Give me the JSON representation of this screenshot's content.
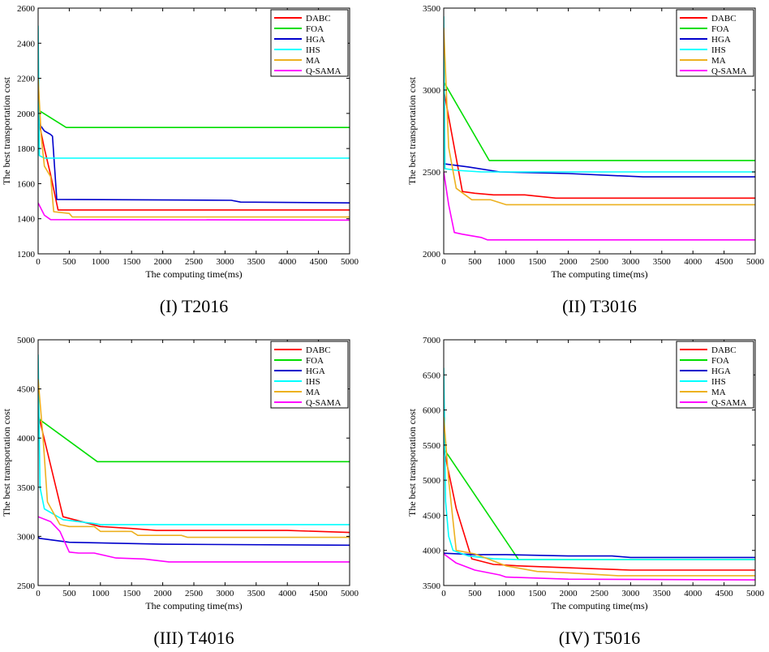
{
  "figure": {
    "colors": {
      "DABC": "#ff0000",
      "FOA": "#00dd00",
      "HGA": "#0000cc",
      "IHS": "#00ffff",
      "MA": "#edb120",
      "Q-SAMA": "#ff00ff"
    }
  },
  "chart_data": [
    {
      "type": "line",
      "caption": "(I) T2016",
      "xlabel": "The computing time(ms)",
      "ylabel": "The best transportation cost",
      "xlim": [
        0,
        5000
      ],
      "ylim": [
        1200,
        2600
      ],
      "xticks": [
        0,
        500,
        1000,
        1500,
        2000,
        2500,
        3000,
        3500,
        4000,
        4500,
        5000
      ],
      "yticks": [
        1200,
        1400,
        1600,
        1800,
        2000,
        2200,
        2400,
        2600
      ],
      "legend_position": "top-right",
      "series": [
        {
          "name": "DABC",
          "points": [
            [
              0,
              2050
            ],
            [
              20,
              1940
            ],
            [
              100,
              1800
            ],
            [
              200,
              1650
            ],
            [
              320,
              1450
            ],
            [
              5000,
              1450
            ]
          ]
        },
        {
          "name": "FOA",
          "points": [
            [
              0,
              2020
            ],
            [
              450,
              1920
            ],
            [
              5000,
              1920
            ]
          ]
        },
        {
          "name": "HGA",
          "points": [
            [
              0,
              2050
            ],
            [
              20,
              1940
            ],
            [
              100,
              1900
            ],
            [
              200,
              1880
            ],
            [
              230,
              1870
            ],
            [
              300,
              1510
            ],
            [
              3100,
              1505
            ],
            [
              3250,
              1495
            ],
            [
              5000,
              1490
            ]
          ]
        },
        {
          "name": "IHS",
          "points": [
            [
              0,
              2500
            ],
            [
              20,
              1760
            ],
            [
              100,
              1745
            ],
            [
              5000,
              1745
            ]
          ]
        },
        {
          "name": "MA",
          "points": [
            [
              0,
              2200
            ],
            [
              50,
              1870
            ],
            [
              100,
              1700
            ],
            [
              200,
              1640
            ],
            [
              250,
              1440
            ],
            [
              500,
              1430
            ],
            [
              550,
              1410
            ],
            [
              5000,
              1410
            ]
          ]
        },
        {
          "name": "Q-SAMA",
          "points": [
            [
              0,
              1490
            ],
            [
              100,
              1420
            ],
            [
              200,
              1395
            ],
            [
              5000,
              1392
            ]
          ]
        }
      ]
    },
    {
      "type": "line",
      "caption": "(II) T3016",
      "xlabel": "The computing time(ms)",
      "ylabel": "The best transportation cost",
      "xlim": [
        0,
        5000
      ],
      "ylim": [
        2000,
        3500
      ],
      "xticks": [
        0,
        500,
        1000,
        1500,
        2000,
        2500,
        3000,
        3500,
        4000,
        4500,
        5000
      ],
      "yticks": [
        2000,
        2500,
        3000,
        3500
      ],
      "legend_position": "top-right",
      "series": [
        {
          "name": "DABC",
          "points": [
            [
              0,
              3000
            ],
            [
              300,
              2380
            ],
            [
              500,
              2370
            ],
            [
              800,
              2360
            ],
            [
              1300,
              2360
            ],
            [
              1800,
              2340
            ],
            [
              5000,
              2340
            ]
          ]
        },
        {
          "name": "FOA",
          "points": [
            [
              0,
              3050
            ],
            [
              730,
              2570
            ],
            [
              5000,
              2570
            ]
          ]
        },
        {
          "name": "HGA",
          "points": [
            [
              0,
              2550
            ],
            [
              400,
              2530
            ],
            [
              900,
              2500
            ],
            [
              2000,
              2490
            ],
            [
              3200,
              2470
            ],
            [
              5000,
              2470
            ]
          ]
        },
        {
          "name": "IHS",
          "points": [
            [
              0,
              3450
            ],
            [
              20,
              2520
            ],
            [
              200,
              2510
            ],
            [
              600,
              2500
            ],
            [
              5000,
              2500
            ]
          ]
        },
        {
          "name": "MA",
          "points": [
            [
              0,
              3380
            ],
            [
              80,
              2650
            ],
            [
              200,
              2400
            ],
            [
              450,
              2330
            ],
            [
              750,
              2330
            ],
            [
              1000,
              2300
            ],
            [
              5000,
              2300
            ]
          ]
        },
        {
          "name": "Q-SAMA",
          "points": [
            [
              0,
              2500
            ],
            [
              80,
              2300
            ],
            [
              170,
              2130
            ],
            [
              300,
              2120
            ],
            [
              600,
              2100
            ],
            [
              700,
              2085
            ],
            [
              5000,
              2085
            ]
          ]
        }
      ]
    },
    {
      "type": "line",
      "caption": "(III) T4016",
      "xlabel": "The computing time(ms)",
      "ylabel": "The best transportation cost",
      "xlim": [
        0,
        5000
      ],
      "ylim": [
        2500,
        5000
      ],
      "xticks": [
        0,
        500,
        1000,
        1500,
        2000,
        2500,
        3000,
        3500,
        4000,
        4500,
        5000
      ],
      "yticks": [
        2500,
        3000,
        3500,
        4000,
        4500,
        5000
      ],
      "legend_position": "top-right",
      "series": [
        {
          "name": "DABC",
          "points": [
            [
              0,
              4250
            ],
            [
              400,
              3200
            ],
            [
              1000,
              3100
            ],
            [
              1500,
              3080
            ],
            [
              1900,
              3060
            ],
            [
              4000,
              3060
            ],
            [
              5000,
              3040
            ]
          ]
        },
        {
          "name": "FOA",
          "points": [
            [
              0,
              4200
            ],
            [
              950,
              3760
            ],
            [
              5000,
              3760
            ]
          ]
        },
        {
          "name": "HGA",
          "points": [
            [
              0,
              3000
            ],
            [
              20,
              2980
            ],
            [
              500,
              2940
            ],
            [
              2000,
              2920
            ],
            [
              5000,
              2910
            ]
          ]
        },
        {
          "name": "IHS",
          "points": [
            [
              0,
              4850
            ],
            [
              30,
              3500
            ],
            [
              100,
              3280
            ],
            [
              400,
              3170
            ],
            [
              900,
              3130
            ],
            [
              1000,
              3120
            ],
            [
              5000,
              3120
            ]
          ]
        },
        {
          "name": "MA",
          "points": [
            [
              0,
              4600
            ],
            [
              80,
              4000
            ],
            [
              150,
              3350
            ],
            [
              350,
              3120
            ],
            [
              500,
              3100
            ],
            [
              900,
              3100
            ],
            [
              1000,
              3050
            ],
            [
              1500,
              3050
            ],
            [
              1600,
              3010
            ],
            [
              2300,
              3010
            ],
            [
              2400,
              2990
            ],
            [
              4000,
              2990
            ],
            [
              5000,
              2990
            ]
          ]
        },
        {
          "name": "Q-SAMA",
          "points": [
            [
              0,
              3200
            ],
            [
              200,
              3150
            ],
            [
              350,
              3050
            ],
            [
              500,
              2840
            ],
            [
              650,
              2830
            ],
            [
              900,
              2830
            ],
            [
              1250,
              2780
            ],
            [
              1700,
              2770
            ],
            [
              2100,
              2740
            ],
            [
              5000,
              2740
            ]
          ]
        }
      ]
    },
    {
      "type": "line",
      "caption": "(IV) T5016",
      "xlabel": "The computing time(ms)",
      "ylabel": "The best transportation cost",
      "xlim": [
        0,
        5000
      ],
      "ylim": [
        3500,
        7000
      ],
      "xticks": [
        0,
        500,
        1000,
        1500,
        2000,
        2500,
        3000,
        3500,
        4000,
        4500,
        5000
      ],
      "yticks": [
        3500,
        4000,
        4500,
        5000,
        5500,
        6000,
        6500,
        7000
      ],
      "legend_position": "top-right",
      "series": [
        {
          "name": "DABC",
          "points": [
            [
              0,
              5450
            ],
            [
              200,
              4600
            ],
            [
              450,
              3880
            ],
            [
              800,
              3800
            ],
            [
              1200,
              3780
            ],
            [
              3000,
              3720
            ],
            [
              5000,
              3720
            ]
          ]
        },
        {
          "name": "FOA",
          "points": [
            [
              0,
              5450
            ],
            [
              1200,
              3870
            ],
            [
              5000,
              3870
            ]
          ]
        },
        {
          "name": "HGA",
          "points": [
            [
              0,
              3960
            ],
            [
              500,
              3940
            ],
            [
              1000,
              3940
            ],
            [
              2000,
              3920
            ],
            [
              2700,
              3920
            ],
            [
              3000,
              3900
            ],
            [
              5000,
              3900
            ]
          ]
        },
        {
          "name": "IHS",
          "points": [
            [
              0,
              6600
            ],
            [
              30,
              4700
            ],
            [
              80,
              4200
            ],
            [
              150,
              4000
            ],
            [
              400,
              3920
            ],
            [
              800,
              3880
            ],
            [
              1200,
              3870
            ],
            [
              5000,
              3870
            ]
          ]
        },
        {
          "name": "MA",
          "points": [
            [
              0,
              5900
            ],
            [
              80,
              5000
            ],
            [
              200,
              4000
            ],
            [
              500,
              3950
            ],
            [
              1000,
              3780
            ],
            [
              1500,
              3700
            ],
            [
              2000,
              3680
            ],
            [
              2800,
              3640
            ],
            [
              5000,
              3640
            ]
          ]
        },
        {
          "name": "Q-SAMA",
          "points": [
            [
              0,
              3950
            ],
            [
              200,
              3820
            ],
            [
              500,
              3720
            ],
            [
              900,
              3650
            ],
            [
              1000,
              3620
            ],
            [
              2000,
              3590
            ],
            [
              5000,
              3580
            ]
          ]
        }
      ]
    }
  ]
}
